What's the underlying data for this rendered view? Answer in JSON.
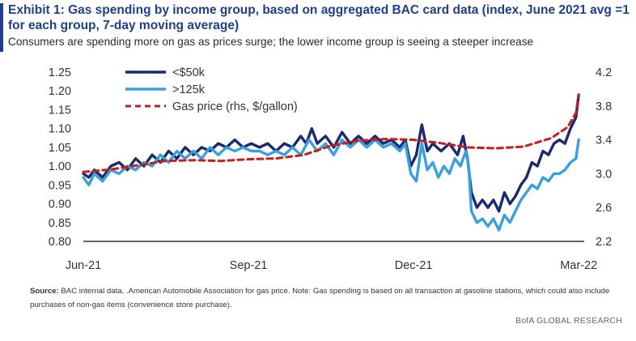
{
  "header": {
    "title": "Exhibit 1: Gas spending by income group, based on aggregated BAC card data (index, June 2021 avg =1 for each group, 7-day moving average)",
    "subtitle": "Consumers are spending more on gas as prices surge; the lower income group is seeing a steeper increase"
  },
  "footer": {
    "source_label": "Source:",
    "source_text": "BAC internal data, .American Automobile Association for gas price. Note: Gas spending is based on all transaction at gasoline stations, which could also include purchases of non-gas items (convenience store purchase).",
    "brand": "BofA GLOBAL RESEARCH"
  },
  "chart_data": {
    "type": "line",
    "x_tick_labels": [
      "Jun-21",
      "Sep-21",
      "Dec-21",
      "Mar-22"
    ],
    "x_tick_positions": [
      0,
      3,
      6,
      9
    ],
    "xlim": [
      0,
      9.1
    ],
    "y_left_ticks": [
      "1.20",
      "1.15",
      "1.10",
      "1.05",
      "1.00",
      "0.95",
      "0.90",
      "0.85",
      "0.80"
    ],
    "y_left_first": "1.25",
    "ylim_left": [
      0.8,
      1.25
    ],
    "y_right_ticks": [
      "4.2",
      "3.8",
      "3.4",
      "3.0",
      "2.6",
      "2.2"
    ],
    "ylim_right": [
      2.2,
      4.2
    ],
    "legend_position": "top-left",
    "series": [
      {
        "name": "<$50k",
        "axis": "left",
        "color": "#1a2a6c",
        "style": "solid",
        "points": [
          [
            0.0,
            0.98
          ],
          [
            0.1,
            0.97
          ],
          [
            0.2,
            0.99
          ],
          [
            0.35,
            0.97
          ],
          [
            0.5,
            1.0
          ],
          [
            0.65,
            1.01
          ],
          [
            0.8,
            0.99
          ],
          [
            0.95,
            1.02
          ],
          [
            1.1,
            1.0
          ],
          [
            1.25,
            1.03
          ],
          [
            1.4,
            1.01
          ],
          [
            1.55,
            1.04
          ],
          [
            1.7,
            1.02
          ],
          [
            1.85,
            1.05
          ],
          [
            2.0,
            1.03
          ],
          [
            2.15,
            1.05
          ],
          [
            2.3,
            1.04
          ],
          [
            2.45,
            1.06
          ],
          [
            2.6,
            1.05
          ],
          [
            2.75,
            1.07
          ],
          [
            2.9,
            1.05
          ],
          [
            3.05,
            1.06
          ],
          [
            3.2,
            1.05
          ],
          [
            3.35,
            1.06
          ],
          [
            3.5,
            1.04
          ],
          [
            3.65,
            1.06
          ],
          [
            3.8,
            1.05
          ],
          [
            3.95,
            1.08
          ],
          [
            4.05,
            1.06
          ],
          [
            4.15,
            1.1
          ],
          [
            4.25,
            1.06
          ],
          [
            4.4,
            1.08
          ],
          [
            4.55,
            1.05
          ],
          [
            4.7,
            1.09
          ],
          [
            4.85,
            1.06
          ],
          [
            5.0,
            1.08
          ],
          [
            5.15,
            1.06
          ],
          [
            5.3,
            1.08
          ],
          [
            5.45,
            1.06
          ],
          [
            5.6,
            1.07
          ],
          [
            5.75,
            1.05
          ],
          [
            5.85,
            1.07
          ],
          [
            5.95,
            1.0
          ],
          [
            6.05,
            1.03
          ],
          [
            6.15,
            1.11
          ],
          [
            6.25,
            1.04
          ],
          [
            6.35,
            1.06
          ],
          [
            6.5,
            1.04
          ],
          [
            6.65,
            1.06
          ],
          [
            6.8,
            1.03
          ],
          [
            6.9,
            1.08
          ],
          [
            6.98,
            1.02
          ],
          [
            7.05,
            0.93
          ],
          [
            7.15,
            0.89
          ],
          [
            7.25,
            0.91
          ],
          [
            7.35,
            0.89
          ],
          [
            7.45,
            0.91
          ],
          [
            7.55,
            0.88
          ],
          [
            7.65,
            0.93
          ],
          [
            7.75,
            0.9
          ],
          [
            7.85,
            0.92
          ],
          [
            7.95,
            0.95
          ],
          [
            8.05,
            0.97
          ],
          [
            8.15,
            1.01
          ],
          [
            8.25,
            1.0
          ],
          [
            8.35,
            1.04
          ],
          [
            8.45,
            1.03
          ],
          [
            8.55,
            1.06
          ],
          [
            8.65,
            1.07
          ],
          [
            8.75,
            1.06
          ],
          [
            8.85,
            1.1
          ],
          [
            8.95,
            1.13
          ],
          [
            9.0,
            1.19
          ]
        ]
      },
      {
        "name": ">125k",
        "axis": "left",
        "color": "#3aa0db",
        "style": "solid",
        "points": [
          [
            0.0,
            0.97
          ],
          [
            0.1,
            0.95
          ],
          [
            0.2,
            0.98
          ],
          [
            0.35,
            0.96
          ],
          [
            0.5,
            0.99
          ],
          [
            0.65,
            0.98
          ],
          [
            0.8,
            1.0
          ],
          [
            0.95,
            0.99
          ],
          [
            1.1,
            1.01
          ],
          [
            1.25,
            1.0
          ],
          [
            1.4,
            1.03
          ],
          [
            1.55,
            1.01
          ],
          [
            1.7,
            1.04
          ],
          [
            1.85,
            1.02
          ],
          [
            2.0,
            1.04
          ],
          [
            2.15,
            1.02
          ],
          [
            2.3,
            1.05
          ],
          [
            2.45,
            1.03
          ],
          [
            2.6,
            1.05
          ],
          [
            2.75,
            1.04
          ],
          [
            2.9,
            1.05
          ],
          [
            3.05,
            1.04
          ],
          [
            3.2,
            1.04
          ],
          [
            3.35,
            1.03
          ],
          [
            3.5,
            1.04
          ],
          [
            3.65,
            1.03
          ],
          [
            3.8,
            1.05
          ],
          [
            3.95,
            1.03
          ],
          [
            4.1,
            1.07
          ],
          [
            4.25,
            1.04
          ],
          [
            4.4,
            1.06
          ],
          [
            4.55,
            1.03
          ],
          [
            4.7,
            1.07
          ],
          [
            4.85,
            1.05
          ],
          [
            5.0,
            1.07
          ],
          [
            5.15,
            1.05
          ],
          [
            5.3,
            1.07
          ],
          [
            5.45,
            1.05
          ],
          [
            5.6,
            1.06
          ],
          [
            5.75,
            1.04
          ],
          [
            5.85,
            1.06
          ],
          [
            5.95,
            0.98
          ],
          [
            6.05,
            0.96
          ],
          [
            6.15,
            1.06
          ],
          [
            6.25,
            0.99
          ],
          [
            6.35,
            1.01
          ],
          [
            6.45,
            0.97
          ],
          [
            6.55,
            1.0
          ],
          [
            6.65,
            0.98
          ],
          [
            6.75,
            1.02
          ],
          [
            6.85,
            1.0
          ],
          [
            6.95,
            1.04
          ],
          [
            7.0,
            1.0
          ],
          [
            7.05,
            0.88
          ],
          [
            7.15,
            0.85
          ],
          [
            7.25,
            0.86
          ],
          [
            7.35,
            0.84
          ],
          [
            7.45,
            0.86
          ],
          [
            7.55,
            0.83
          ],
          [
            7.65,
            0.87
          ],
          [
            7.75,
            0.85
          ],
          [
            7.85,
            0.88
          ],
          [
            7.95,
            0.91
          ],
          [
            8.05,
            0.93
          ],
          [
            8.15,
            0.95
          ],
          [
            8.25,
            0.94
          ],
          [
            8.35,
            0.97
          ],
          [
            8.45,
            0.96
          ],
          [
            8.55,
            0.98
          ],
          [
            8.65,
            0.98
          ],
          [
            8.75,
            0.99
          ],
          [
            8.85,
            1.01
          ],
          [
            8.95,
            1.02
          ],
          [
            9.0,
            1.07
          ]
        ]
      },
      {
        "name": "Gas price (rhs, $/gallon)",
        "axis": "right",
        "color": "#c41e1e",
        "style": "dashed",
        "points": [
          [
            0.0,
            3.02
          ],
          [
            0.5,
            3.05
          ],
          [
            1.0,
            3.1
          ],
          [
            1.5,
            3.15
          ],
          [
            2.0,
            3.16
          ],
          [
            2.5,
            3.15
          ],
          [
            3.0,
            3.17
          ],
          [
            3.5,
            3.18
          ],
          [
            4.0,
            3.22
          ],
          [
            4.5,
            3.33
          ],
          [
            5.0,
            3.39
          ],
          [
            5.5,
            3.41
          ],
          [
            6.0,
            3.4
          ],
          [
            6.5,
            3.36
          ],
          [
            7.0,
            3.31
          ],
          [
            7.5,
            3.3
          ],
          [
            8.0,
            3.32
          ],
          [
            8.5,
            3.42
          ],
          [
            8.8,
            3.55
          ],
          [
            8.95,
            3.72
          ],
          [
            9.0,
            3.93
          ]
        ]
      }
    ]
  }
}
